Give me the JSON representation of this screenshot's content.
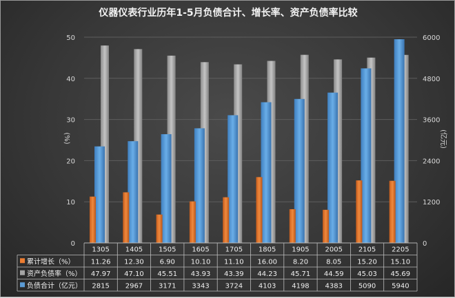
{
  "chart_data": {
    "type": "bar",
    "title": "仪器仪表行业历年1-5月负债合计、增长率、资产负债率比较",
    "categories": [
      "1305",
      "1405",
      "1505",
      "1605",
      "1705",
      "1805",
      "1905",
      "2005",
      "2105",
      "2205"
    ],
    "y_left": {
      "label": "(%)",
      "ylim": [
        0,
        50
      ],
      "ticks": [
        "0",
        "10",
        "20",
        "30",
        "40",
        "50"
      ]
    },
    "y_right": {
      "label": "(亿元)",
      "ylim": [
        0,
        6000
      ],
      "ticks": [
        "0",
        "1200",
        "2400",
        "3600",
        "4800",
        "6000"
      ]
    },
    "series": [
      {
        "name": "累计增长（%）",
        "axis": "left",
        "color": "#ed7d31",
        "values": [
          11.26,
          12.3,
          6.9,
          10.1,
          11.1,
          16.0,
          8.2,
          8.05,
          15.2,
          15.1
        ],
        "display": [
          "11.26",
          "12.30",
          "6.90",
          "10.10",
          "11.10",
          "16.00",
          "8.20",
          "8.05",
          "15.20",
          "15.10"
        ]
      },
      {
        "name": "资产负债率（%）",
        "axis": "left",
        "color": "#a5a5a5",
        "values": [
          47.97,
          47.1,
          45.51,
          43.93,
          43.39,
          44.23,
          45.71,
          44.59,
          45.03,
          45.69
        ],
        "display": [
          "47.97",
          "47.10",
          "45.51",
          "43.93",
          "43.39",
          "44.23",
          "45.71",
          "44.59",
          "45.03",
          "45.69"
        ]
      },
      {
        "name": "负债合计（亿元）",
        "axis": "right",
        "color": "#5b9bd5",
        "values": [
          2815,
          2967,
          3171,
          3343,
          3724,
          4103,
          4198,
          4383,
          5090,
          5940
        ],
        "display": [
          "2815",
          "2967",
          "3171",
          "3343",
          "3724",
          "4103",
          "4198",
          "4383",
          "5090",
          "5940"
        ]
      }
    ],
    "grid": true,
    "data_table": true
  }
}
